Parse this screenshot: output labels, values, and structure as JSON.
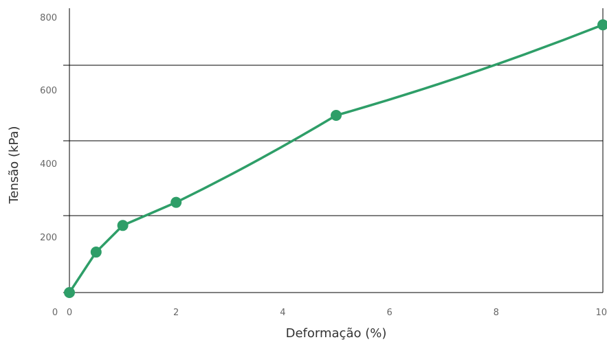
{
  "chart_data": {
    "type": "line",
    "title": "",
    "xlabel": "Deformação (%)",
    "ylabel": "Tensão (kPa)",
    "x": [
      0,
      0.5,
      1,
      2,
      5,
      10
    ],
    "series": [
      {
        "name": "",
        "values": [
          0,
          150,
          225,
          290,
          535,
          790
        ]
      }
    ],
    "x_ticks": [
      "0",
      "2",
      "4",
      "6",
      "8",
      "10"
    ],
    "y_ticks": [
      "200",
      "400",
      "600",
      "800"
    ],
    "origin_label": "0",
    "ylim": [
      0,
      800
    ],
    "xlim": [
      0,
      10
    ],
    "grid": "horizontal",
    "color": "#2e9e68"
  }
}
